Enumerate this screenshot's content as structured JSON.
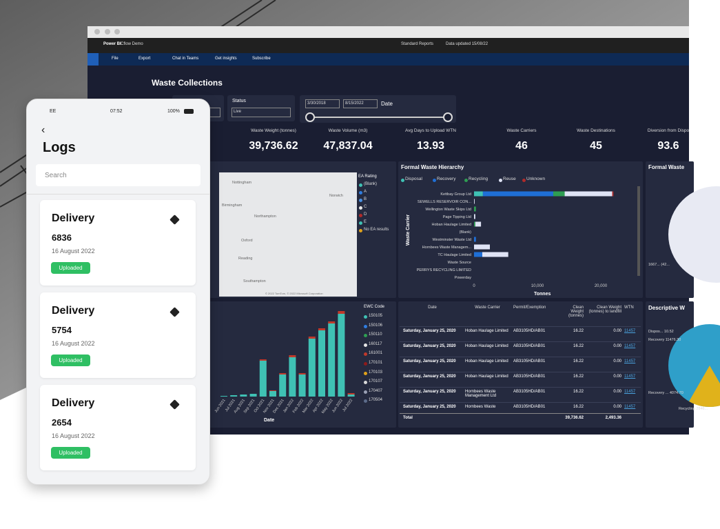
{
  "phone": {
    "carrier": "EE",
    "time": "07:52",
    "battery": "100%",
    "title": "Logs",
    "search": "Search",
    "items": [
      {
        "title": "Delivery",
        "number": "6836",
        "date": "16 August 2022",
        "status": "Uploaded"
      },
      {
        "title": "Delivery",
        "number": "5754",
        "date": "16 August 2022",
        "status": "Uploaded"
      },
      {
        "title": "Delivery",
        "number": "2654",
        "date": "16 August 2022",
        "status": "Uploaded"
      }
    ]
  },
  "browser": {
    "app": "Power BI",
    "workspace": "Cflow Demo",
    "report": "Standard Reports",
    "updated": "Data updated 15/08/22",
    "menu": [
      "File",
      "Export",
      "Chat in Teams",
      "Get insights",
      "Subscribe"
    ]
  },
  "dashboard": {
    "title": "Waste Collections",
    "filters": {
      "status_label": "Status",
      "status_value": "Live",
      "date_from": "3/30/2018",
      "date_to": "8/15/2022",
      "date_label": "Date"
    },
    "kpis": [
      {
        "label": "Waste Weight (tonnes)",
        "value": "39,736.62"
      },
      {
        "label": "Waste Volume (m3)",
        "value": "47,837.04"
      },
      {
        "label": "Avg Days to Upload WTN",
        "value": "13.93"
      },
      {
        "label": "Waste Carriers",
        "value": "46"
      },
      {
        "label": "Waste Destinations",
        "value": "45"
      },
      {
        "label": "Diversion from Dispo",
        "value": "93.6"
      }
    ],
    "map": {
      "legend_title": "EA Rating",
      "legend": [
        "(Blank)",
        "A",
        "B",
        "C",
        "D",
        "E",
        "No EA results"
      ],
      "colors": [
        "#3fc1b4",
        "#2f7de1",
        "#4a90e2",
        "#e6e6e6",
        "#b02a2a",
        "#3fc1b4",
        "#e0a21b"
      ],
      "places": [
        "Nottingham",
        "Norwich",
        "Birmingham",
        "Northampton",
        "Oxford",
        "Reading",
        "Southampton"
      ],
      "attribution": "© 2022 TomTom, © 2022 Microsoft Corporation"
    },
    "hierarchy": {
      "type": "bar",
      "title": "Formal Waste Hierarchy",
      "y_label": "Waste Carrier",
      "x_label": "Tonnes",
      "categories": [
        "Kettbay Group Ltd",
        "SEWELLS RESERVOIR CON...",
        "Wellington Waste Skips Ltd",
        "Page Tipping Ltd",
        "Hoban Haulage Limited",
        "(Blank)",
        "Westminster Waste Ltd",
        "Hornbees Waste Managem...",
        "TC Haulage Limited",
        "Waste Source",
        "PERRYS RECYCLING LIMITED",
        "Powerday"
      ],
      "series": [
        {
          "name": "Disposal",
          "color": "#3fc1b4",
          "values": [
            1400,
            0,
            0,
            0,
            0,
            0,
            0,
            0,
            0,
            0,
            0,
            0
          ]
        },
        {
          "name": "Recovery",
          "color": "#1f6fd6",
          "values": [
            11100,
            0,
            0,
            0,
            0,
            0,
            300,
            0,
            1300,
            0,
            0,
            0
          ]
        },
        {
          "name": "Recycling",
          "color": "#2e9e52",
          "values": [
            1800,
            0,
            300,
            0,
            200,
            0,
            0,
            0,
            0,
            0,
            0,
            0
          ]
        },
        {
          "name": "Reuse",
          "color": "#dfe3f5",
          "values": [
            7500,
            100,
            0,
            200,
            900,
            0,
            0,
            2500,
            4100,
            0,
            0,
            0
          ]
        },
        {
          "name": "Unknown",
          "color": "#b02a2a",
          "values": [
            200,
            0,
            0,
            0,
            0,
            0,
            0,
            0,
            0,
            0,
            0,
            0
          ]
        }
      ],
      "xlim": [
        0,
        25000
      ],
      "xticks": [
        0,
        {
          "value": 10000,
          "label": "10,000"
        },
        {
          "value": 20000,
          "label": "20,000"
        }
      ]
    },
    "monthly": {
      "type": "bar",
      "x_label": "Date",
      "legend_title": "EWC Code",
      "categories": [
        "Jun 2021",
        "Jul 2021",
        "Aug 2021",
        "Sep 2021",
        "Oct 2021",
        "Nov 2021",
        "Dec 2021",
        "Jan 2022",
        "Feb 2022",
        "Mar 2022",
        "Apr 2022",
        "May 2022",
        "Jun 2022",
        "Jul 2022"
      ],
      "ylim": [
        0,
        130
      ],
      "series": [
        {
          "name": "150105",
          "color": "#3fc1b4",
          "values": [
            1,
            2,
            3,
            4,
            52,
            8,
            32,
            57,
            32,
            84,
            96,
            106,
            120,
            3
          ]
        },
        {
          "name": "150106",
          "color": "#2f7de1",
          "values": [
            0,
            0,
            0,
            0,
            0,
            0,
            0,
            0,
            0,
            0,
            0,
            0,
            0,
            0
          ]
        },
        {
          "name": "150110",
          "color": "#2e9e52",
          "values": [
            0,
            0,
            0,
            0,
            0,
            0,
            0,
            0,
            0,
            0,
            0,
            0,
            0,
            0
          ]
        },
        {
          "name": "160117",
          "color": "#e6e6e6",
          "values": [
            0,
            0,
            0,
            0,
            0,
            0,
            0,
            0,
            0,
            0,
            0,
            0,
            0,
            0
          ]
        },
        {
          "name": "161001",
          "color": "#c0392b",
          "values": [
            0,
            0,
            0,
            0,
            2,
            1,
            2,
            3,
            2,
            3,
            3,
            3,
            4,
            2
          ]
        },
        {
          "name": "170101",
          "color": "#8e1b1b",
          "values": [
            0,
            0,
            0,
            0,
            0,
            0,
            0,
            0,
            0,
            0,
            0,
            0,
            0,
            0
          ]
        },
        {
          "name": "170103",
          "color": "#e0a21b",
          "values": [
            0,
            0,
            0,
            0,
            0,
            0,
            0,
            0,
            0,
            0,
            0,
            0,
            0,
            0
          ]
        },
        {
          "name": "170107",
          "color": "#d9d9d9",
          "values": [
            0,
            0,
            0,
            0,
            0,
            0,
            0,
            0,
            0,
            0,
            0,
            0,
            0,
            0
          ]
        },
        {
          "name": "170407",
          "color": "#9aa0b4",
          "values": [
            0,
            0,
            0,
            0,
            0,
            0,
            0,
            0,
            0,
            0,
            0,
            0,
            0,
            0
          ]
        },
        {
          "name": "170504",
          "color": "#5c6b8a",
          "values": [
            0,
            0,
            0,
            0,
            0,
            0,
            0,
            0,
            0,
            0,
            0,
            0,
            0,
            0
          ]
        }
      ]
    },
    "table": {
      "columns": [
        "Date",
        "Waste Carrier",
        "Permit/Exemption",
        "Clean Weight (tonnes)",
        "Clean Weight (tonnes) to landfill",
        "WTN"
      ],
      "rows": [
        [
          "Saturday, January 25, 2020",
          "Hoban Haulage Limited",
          "AB3105HD/AB01",
          "16.22",
          "0.00",
          "11457"
        ],
        [
          "Saturday, January 25, 2020",
          "Hoban Haulage Limited",
          "AB3105HD/AB01",
          "16.22",
          "0.00",
          "11457"
        ],
        [
          "Saturday, January 25, 2020",
          "Hoban Haulage Limited",
          "AB3105HD/AB01",
          "16.22",
          "0.00",
          "11457"
        ],
        [
          "Saturday, January 25, 2020",
          "Hoban Haulage Limited",
          "AB3105HD/AB01",
          "16.22",
          "0.00",
          "11457"
        ],
        [
          "Saturday, January 25, 2020",
          "Hornbees Waste Management Ltd",
          "AB3105HD/AB01",
          "16.22",
          "0.00",
          "11457"
        ],
        [
          "Saturday, January 25, 2020",
          "Hornbees Waste",
          "AB3105HD/AB01",
          "16.22",
          "0.00",
          "11457"
        ]
      ],
      "total": [
        "Total",
        "39,736.62",
        "2,493.36"
      ]
    },
    "right_top": {
      "title": "Formal Waste",
      "label": "1667... (42..."
    },
    "right_bottom": {
      "title": "Descriptive W",
      "labels": [
        "Dispos... 10.52",
        "Recovery 11476.30",
        "Recovery ... 4074.70",
        "Recycling 2846..."
      ]
    }
  }
}
